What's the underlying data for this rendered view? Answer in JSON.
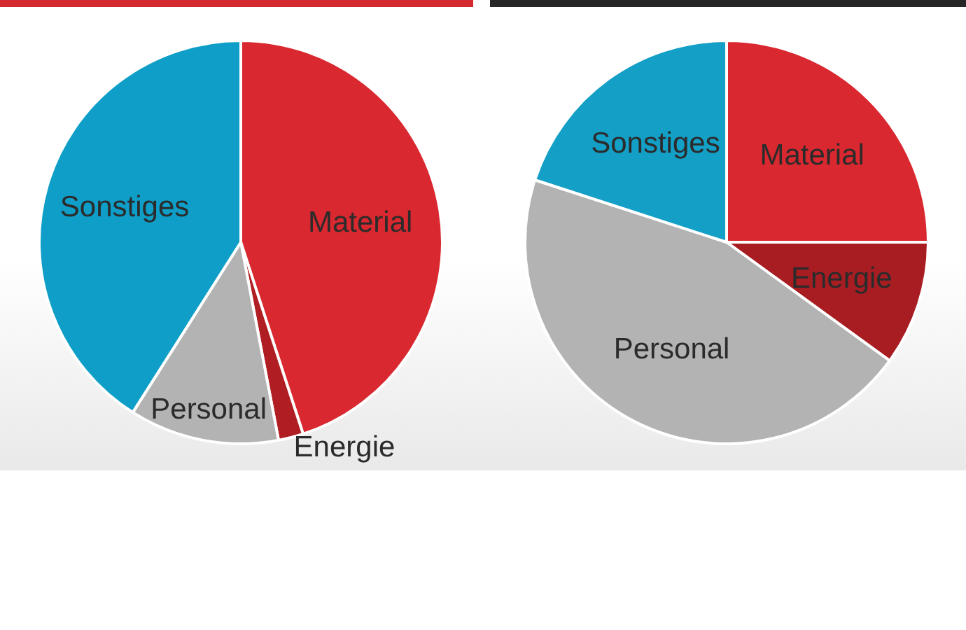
{
  "chart_data": [
    {
      "type": "pie",
      "categories": [
        "Material",
        "Energie",
        "Personal",
        "Sonstiges"
      ],
      "values": [
        45,
        2,
        12,
        41
      ],
      "colors": [
        "#d9282f",
        "#b01e23",
        "#b3b3b3",
        "#0e9ec7"
      ]
    },
    {
      "type": "pie",
      "categories": [
        "Material",
        "Energie",
        "Personal",
        "Sonstiges"
      ],
      "values": [
        25,
        10,
        45,
        20
      ],
      "colors": [
        "#d9282f",
        "#a81d22",
        "#b3b3b3",
        "#139fc6"
      ]
    }
  ]
}
